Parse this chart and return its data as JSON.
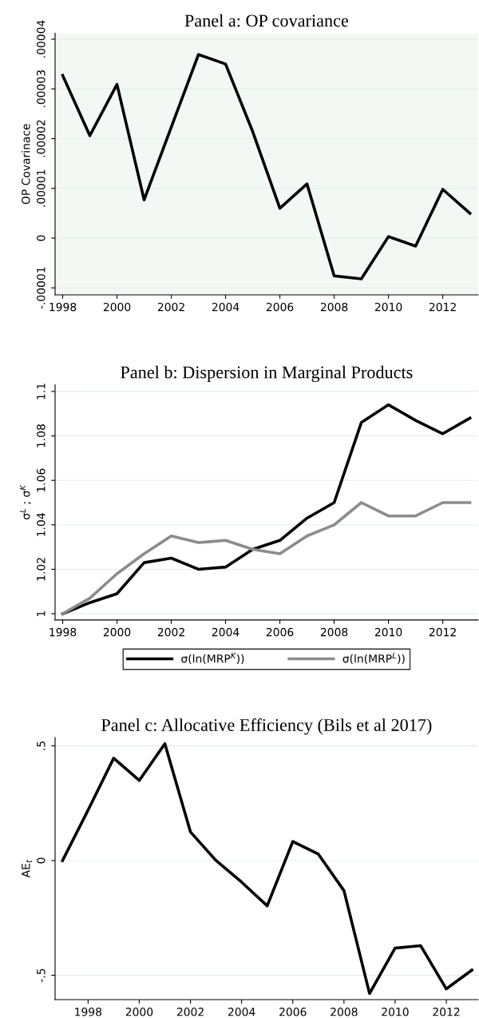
{
  "chart_data": [
    {
      "type": "line",
      "title": "Panel a: OP covariance",
      "ylabel": "OP Covarinace",
      "x": [
        1998,
        1999,
        2000,
        2001,
        2002,
        2003,
        2004,
        2005,
        2006,
        2007,
        2008,
        2009,
        2010,
        2011,
        2012,
        2013
      ],
      "series": [
        {
          "color": "#000000",
          "values": [
            3.27e-05,
            2.06e-05,
            3.09e-05,
            7.7e-06,
            2.23e-05,
            3.69e-05,
            3.5e-05,
            2.14e-05,
            6e-06,
            1.09e-05,
            -7.6e-06,
            -8.2e-06,
            3e-07,
            -1.6e-06,
            9.8e-06,
            5e-06
          ]
        }
      ],
      "xlim": [
        1997.72,
        2013.3
      ],
      "xticks": [
        1998,
        2000,
        2002,
        2004,
        2006,
        2008,
        2010,
        2012
      ],
      "ylim": [
        -1.14e-05,
        4.12e-05
      ],
      "yticks": [
        {
          "value": -1e-05,
          "label": "-.00001"
        },
        {
          "value": 0,
          "label": "0"
        },
        {
          "value": 1e-05,
          "label": ".00001"
        },
        {
          "value": 2e-05,
          "label": ".00002"
        },
        {
          "value": 3e-05,
          "label": ".00003"
        },
        {
          "value": 4e-05,
          "label": ".00004"
        }
      ],
      "grid": "y",
      "legend": false
    },
    {
      "type": "line",
      "title": "Panel b: Dispersion in Marginal Products",
      "ylabel": "σ$^{L}$ ; σ$^{K}$",
      "x": [
        1998,
        1999,
        2000,
        2001,
        2002,
        2003,
        2004,
        2005,
        2006,
        2007,
        2008,
        2009,
        2010,
        2011,
        2012,
        2013
      ],
      "series": [
        {
          "name": "σ(ln(MRP$^{K}$))",
          "color": "#000000",
          "values": [
            1.0,
            1.005,
            1.009,
            1.023,
            1.025,
            1.02,
            1.021,
            1.029,
            1.033,
            1.043,
            1.05,
            1.086,
            1.094,
            1.087,
            1.081,
            1.088
          ]
        },
        {
          "name": "σ(ln(MRP$^{L}$))",
          "color": "#8c8c8c",
          "values": [
            1.0,
            1.007,
            1.018,
            1.027,
            1.035,
            1.032,
            1.033,
            1.029,
            1.027,
            1.035,
            1.04,
            1.05,
            1.044,
            1.044,
            1.05,
            1.05
          ]
        }
      ],
      "xlim": [
        1997.72,
        2013.3
      ],
      "xticks": [
        1998,
        2000,
        2002,
        2004,
        2006,
        2008,
        2010,
        2012
      ],
      "ylim": [
        0.9972,
        1.103
      ],
      "yticks": [
        1,
        1.02,
        1.04,
        1.06,
        1.08,
        1.1
      ],
      "grid": "y",
      "legend": "bottom"
    },
    {
      "type": "line",
      "title": "Panel c: Allocative Efficiency (Bils et al 2017)",
      "ylabel": "AE$_{t}$",
      "x": [
        1997,
        1998,
        1999,
        2000,
        2001,
        2002,
        2003,
        2004,
        2005,
        2006,
        2007,
        2008,
        2009,
        2010,
        2011,
        2012,
        2013
      ],
      "series": [
        {
          "color": "#000000",
          "values": [
            0,
            0.22,
            0.446,
            0.349,
            0.509,
            0.125,
            0.0,
            -0.094,
            -0.197,
            0.083,
            0.028,
            -0.131,
            -0.579,
            -0.381,
            -0.371,
            -0.559,
            -0.477
          ]
        }
      ],
      "xlim": [
        1996.71,
        2013.24
      ],
      "xticks": [
        1998,
        2000,
        2002,
        2004,
        2006,
        2008,
        2010,
        2012
      ],
      "ylim": [
        -0.606,
        0.536
      ],
      "yticks": [
        {
          "value": -0.5,
          "label": "-.5"
        },
        {
          "value": 0,
          "label": "0"
        },
        {
          "value": 0.5,
          "label": ".5"
        }
      ],
      "grid": "y",
      "legend": false
    }
  ]
}
